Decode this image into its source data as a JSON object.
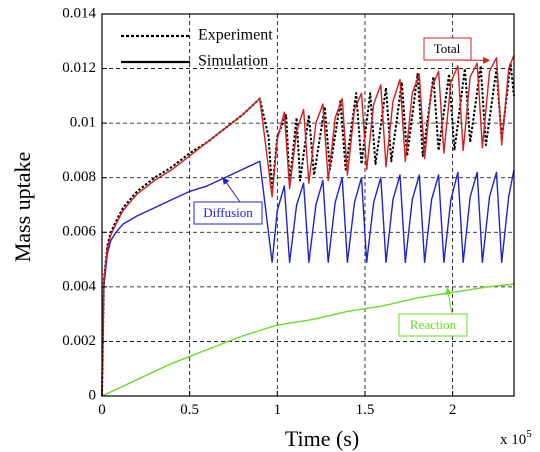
{
  "chart_data": {
    "type": "line",
    "xlabel": "Time (s)",
    "ylabel": "Mass uptake",
    "x_exponent_label": "x 10",
    "x_exponent_power": "5",
    "xlim": [
      0,
      2.35
    ],
    "ylim": [
      0,
      0.014
    ],
    "x_ticks": [
      0,
      0.5,
      1,
      1.5,
      2
    ],
    "x_tick_labels": [
      "0",
      "0.5",
      "1",
      "1.5",
      "2"
    ],
    "y_ticks": [
      0,
      0.002,
      0.004,
      0.006,
      0.008,
      0.01,
      0.012,
      0.014
    ],
    "y_tick_labels": [
      "0",
      "0.002",
      "0.004",
      "0.006",
      "0.008",
      "0.01",
      "0.012",
      "0.014"
    ],
    "grid": true,
    "legend_position": "top-left",
    "legend": [
      {
        "label": "Experiment",
        "style": "dotted"
      },
      {
        "label": "Simulation",
        "style": "solid"
      }
    ],
    "annotations": [
      {
        "text": "Total",
        "color": "#cc2222",
        "target": [
          2.21,
          0.0123
        ]
      },
      {
        "text": "Diffusion",
        "color": "#2222cc",
        "target": [
          0.69,
          0.008
        ]
      },
      {
        "text": "Reaction",
        "color": "#66dd22",
        "target": [
          1.97,
          0.00395
        ]
      }
    ],
    "series": [
      {
        "name": "Experiment",
        "color": "#000000",
        "style": "dotted",
        "x": [
          0,
          0.01,
          0.03,
          0.05,
          0.08,
          0.12,
          0.2,
          0.3,
          0.4,
          0.5,
          0.6,
          0.7,
          0.8,
          0.9,
          0.95,
          0.97,
          1.0,
          1.05,
          1.07,
          1.11,
          1.13,
          1.18,
          1.21,
          1.27,
          1.3,
          1.36,
          1.39,
          1.45,
          1.48,
          1.53,
          1.56,
          1.62,
          1.65,
          1.71,
          1.74,
          1.8,
          1.83,
          1.89,
          1.92,
          1.98,
          2.01,
          2.07,
          2.1,
          2.16,
          2.19,
          2.25,
          2.28,
          2.33,
          2.35
        ],
        "y": [
          0,
          0.0042,
          0.0055,
          0.006,
          0.0064,
          0.0069,
          0.0075,
          0.008,
          0.0084,
          0.0089,
          0.0093,
          0.0098,
          0.0103,
          0.0109,
          0.0095,
          0.0075,
          0.0095,
          0.0103,
          0.0078,
          0.0102,
          0.0079,
          0.0103,
          0.0081,
          0.0106,
          0.0083,
          0.0108,
          0.0083,
          0.0111,
          0.0085,
          0.0111,
          0.0085,
          0.0113,
          0.0086,
          0.0115,
          0.0088,
          0.0118,
          0.0088,
          0.0117,
          0.009,
          0.0118,
          0.009,
          0.012,
          0.0093,
          0.0121,
          0.0092,
          0.012,
          0.0094,
          0.0122,
          0.011
        ]
      },
      {
        "name": "Simulation",
        "color": "#cc2222",
        "style": "solid",
        "x": [
          0,
          0.01,
          0.03,
          0.05,
          0.08,
          0.12,
          0.2,
          0.3,
          0.4,
          0.5,
          0.6,
          0.7,
          0.8,
          0.9,
          0.97,
          1.0,
          1.04,
          1.07,
          1.11,
          1.15,
          1.18,
          1.22,
          1.26,
          1.29,
          1.33,
          1.37,
          1.4,
          1.44,
          1.48,
          1.51,
          1.55,
          1.59,
          1.62,
          1.66,
          1.7,
          1.73,
          1.77,
          1.81,
          1.84,
          1.88,
          1.92,
          1.95,
          1.99,
          2.03,
          2.06,
          2.1,
          2.14,
          2.17,
          2.21,
          2.25,
          2.28,
          2.32,
          2.35
        ],
        "y": [
          0,
          0.0042,
          0.0054,
          0.0059,
          0.0063,
          0.0068,
          0.0074,
          0.0079,
          0.0083,
          0.0088,
          0.0093,
          0.0098,
          0.0103,
          0.0109,
          0.0073,
          0.0094,
          0.0104,
          0.0076,
          0.0097,
          0.0105,
          0.0078,
          0.01,
          0.0107,
          0.0079,
          0.0102,
          0.0109,
          0.0081,
          0.0105,
          0.0111,
          0.0083,
          0.0107,
          0.0114,
          0.0084,
          0.0108,
          0.0116,
          0.0086,
          0.0111,
          0.0118,
          0.0087,
          0.0113,
          0.0119,
          0.0089,
          0.0115,
          0.0121,
          0.009,
          0.0117,
          0.0122,
          0.0091,
          0.0119,
          0.0124,
          0.0092,
          0.012,
          0.0125
        ]
      },
      {
        "name": "Diffusion",
        "color": "#2222cc",
        "style": "solid",
        "x": [
          0,
          0.01,
          0.03,
          0.05,
          0.08,
          0.12,
          0.2,
          0.3,
          0.4,
          0.5,
          0.6,
          0.7,
          0.8,
          0.9,
          0.97,
          1.0,
          1.04,
          1.07,
          1.11,
          1.15,
          1.18,
          1.22,
          1.26,
          1.29,
          1.33,
          1.37,
          1.4,
          1.44,
          1.48,
          1.51,
          1.55,
          1.59,
          1.62,
          1.66,
          1.7,
          1.73,
          1.77,
          1.81,
          1.84,
          1.88,
          1.92,
          1.95,
          1.99,
          2.03,
          2.06,
          2.1,
          2.14,
          2.17,
          2.21,
          2.25,
          2.28,
          2.32,
          2.35
        ],
        "y": [
          0,
          0.004,
          0.0052,
          0.0057,
          0.006,
          0.0063,
          0.0066,
          0.0069,
          0.0072,
          0.0075,
          0.0077,
          0.008,
          0.0083,
          0.0086,
          0.0049,
          0.0068,
          0.0077,
          0.0049,
          0.007,
          0.0078,
          0.0049,
          0.007,
          0.0079,
          0.0049,
          0.0071,
          0.008,
          0.0049,
          0.0071,
          0.008,
          0.0049,
          0.0071,
          0.008,
          0.0049,
          0.0072,
          0.0081,
          0.0049,
          0.0072,
          0.0081,
          0.0049,
          0.0072,
          0.0081,
          0.0049,
          0.0072,
          0.0082,
          0.0049,
          0.0073,
          0.0082,
          0.0049,
          0.0073,
          0.0082,
          0.0049,
          0.0073,
          0.0083
        ]
      },
      {
        "name": "Reaction",
        "color": "#66dd22",
        "style": "solid",
        "x": [
          0,
          0.2,
          0.4,
          0.6,
          0.8,
          0.9,
          1.0,
          1.2,
          1.4,
          1.6,
          1.8,
          2.0,
          2.2,
          2.35
        ],
        "y": [
          0,
          0.0006,
          0.0012,
          0.0017,
          0.0022,
          0.0024,
          0.0026,
          0.0028,
          0.0031,
          0.0033,
          0.0036,
          0.0038,
          0.004,
          0.0041
        ]
      }
    ]
  }
}
